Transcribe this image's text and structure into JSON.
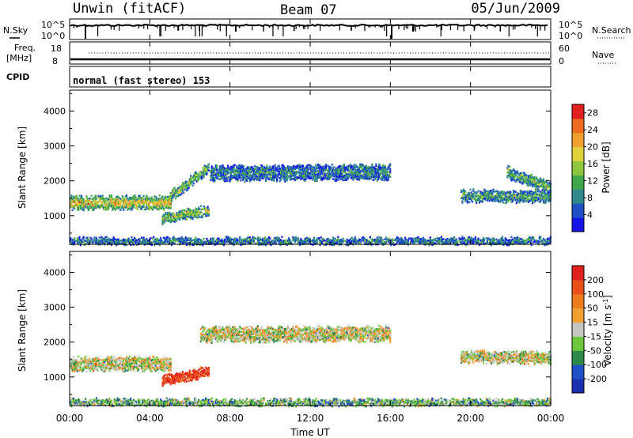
{
  "header": {
    "station": "Unwin (fitACF)",
    "beam": "Beam 07",
    "date": "05/Jun/2009"
  },
  "noise_panel": {
    "left_label": "N.Sky",
    "right_label": "N.Search",
    "left_ticks": [
      "10^5",
      "10^0"
    ],
    "right_ticks": [
      "10^5",
      "10^0"
    ]
  },
  "freq_panel": {
    "left_label_1": "Freq.",
    "left_label_2": "[MHz]",
    "right_label": "Nave",
    "left_ticks": [
      "18",
      "8"
    ],
    "right_ticks": [
      "60",
      "0"
    ]
  },
  "cpid_panel": {
    "label": "CPID",
    "text": "normal (fast stereo) 153"
  },
  "time_axis": {
    "title": "Time UT",
    "ticks": [
      "00:00",
      "04:00",
      "08:00",
      "12:00",
      "16:00",
      "20:00",
      "00:00"
    ]
  },
  "chart_data": [
    {
      "type": "heatmap",
      "title": "",
      "xlabel": "",
      "ylabel": "Slant Range [km]",
      "x_range_hours": [
        0,
        24
      ],
      "ylim": [
        180,
        4600
      ],
      "y_ticks": [
        1000,
        2000,
        3000,
        4000
      ],
      "colorbar": {
        "label": "Power [dB]",
        "ticks": [
          4,
          8,
          12,
          16,
          20,
          24,
          28
        ],
        "range": [
          0,
          30
        ],
        "colors": [
          "#1414e6",
          "#1e50c8",
          "#2e8a8a",
          "#3fa64a",
          "#8cc63f",
          "#e0d23c",
          "#f0a030",
          "#ee6a1e",
          "#e32020"
        ]
      },
      "regions": [
        {
          "name": "early-band",
          "t": [
            0.0,
            5.0
          ],
          "r_start": [
            1450,
            1300
          ],
          "r_end": [
            1350,
            1500
          ],
          "width": 320,
          "level": 0.72
        },
        {
          "name": "mid-arc",
          "t": [
            5.0,
            6.9
          ],
          "r_start": [
            1500,
            2300
          ],
          "r_end": [
            1700,
            2500
          ],
          "width": 260,
          "level": 0.5
        },
        {
          "name": "lower-arc",
          "t": [
            4.6,
            6.9
          ],
          "r_start": [
            800,
            900
          ],
          "r_end": [
            1100,
            1500
          ],
          "width": 260,
          "level": 0.55
        },
        {
          "name": "plateau",
          "t": [
            7.0,
            16.0
          ],
          "r_start": [
            2000,
            2350
          ],
          "r_end": [
            2500,
            2200
          ],
          "width": 380,
          "level": 0.28
        },
        {
          "name": "late-band",
          "t": [
            19.5,
            24.0
          ],
          "r_start": [
            1700,
            1350
          ],
          "r_end": [
            1500,
            1800
          ],
          "width": 280,
          "level": 0.4
        },
        {
          "name": "late-upper",
          "t": [
            21.8,
            24.0
          ],
          "r_start": [
            2200,
            2000
          ],
          "r_end": [
            2350,
            1650
          ],
          "width": 280,
          "level": 0.45
        },
        {
          "name": "ground-scatter",
          "t": [
            0.0,
            24.0
          ],
          "r_start": [
            300,
            300
          ],
          "r_end": [
            300,
            300
          ],
          "width": 150,
          "level": 0.3
        }
      ]
    },
    {
      "type": "heatmap",
      "title": "",
      "xlabel": "Time UT",
      "ylabel": "Slant Range [km]",
      "x_range_hours": [
        0,
        24
      ],
      "ylim": [
        180,
        4600
      ],
      "y_ticks": [
        1000,
        2000,
        3000,
        4000
      ],
      "colorbar": {
        "label": "Velocity [m s^-1]",
        "ticks": [
          200,
          100,
          50,
          15,
          -15,
          -50,
          -100,
          -200
        ],
        "colors": [
          "#1c2fb0",
          "#1e50c8",
          "#2e8a4a",
          "#6cc83c",
          "#c6c6c0",
          "#f0a030",
          "#ee7a1e",
          "#e85018",
          "#e32020"
        ]
      },
      "regions": [
        {
          "name": "early-band",
          "t": [
            0.0,
            5.0
          ],
          "r_start": [
            1450,
            1300
          ],
          "r_end": [
            1350,
            1500
          ],
          "width": 320,
          "level": 0.5
        },
        {
          "name": "lower-arc",
          "t": [
            4.6,
            6.9
          ],
          "r_start": [
            800,
            900
          ],
          "r_end": [
            1100,
            1500
          ],
          "width": 260,
          "level": 0.95
        },
        {
          "name": "plateau",
          "t": [
            6.5,
            16.0
          ],
          "r_start": [
            2000,
            2350
          ],
          "r_end": [
            2500,
            2200
          ],
          "width": 380,
          "level": 0.5
        },
        {
          "name": "late-band",
          "t": [
            19.5,
            24.0
          ],
          "r_start": [
            1700,
            1350
          ],
          "r_end": [
            1500,
            1800
          ],
          "width": 280,
          "level": 0.5
        },
        {
          "name": "ground-scatter",
          "t": [
            0.0,
            24.0
          ],
          "r_start": [
            300,
            300
          ],
          "r_end": [
            300,
            300
          ],
          "width": 150,
          "level": 0.35
        }
      ]
    }
  ],
  "colors": {
    "frame": "#000000",
    "background": "#ffffff"
  }
}
